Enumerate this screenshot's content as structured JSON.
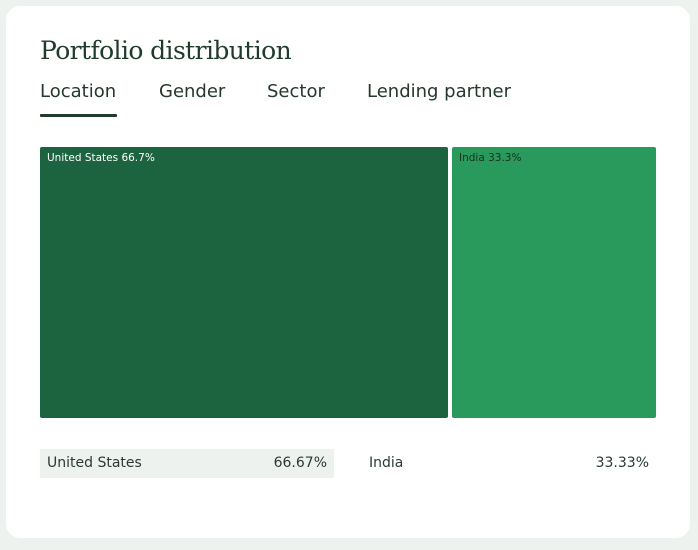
{
  "header": {
    "title": "Portfolio distribution"
  },
  "tabs": [
    {
      "label": "Location",
      "active": true
    },
    {
      "label": "Gender",
      "active": false
    },
    {
      "label": "Sector",
      "active": false
    },
    {
      "label": "Lending partner",
      "active": false
    }
  ],
  "treemap": {
    "tiles": [
      {
        "label": "United States 66.7%",
        "share": 0.667,
        "color": "#1c6340",
        "text_color": "#ffffff"
      },
      {
        "label": "India 33.3%",
        "share": 0.333,
        "color": "#29995c",
        "text_color": "#17301f"
      }
    ]
  },
  "legend": [
    {
      "name": "United States",
      "percent": "66.67%",
      "highlighted": true
    },
    {
      "name": "India",
      "percent": "33.33%",
      "highlighted": false
    }
  ],
  "colors": {
    "background": "#eef2ef",
    "card": "#ffffff",
    "text_dark": "#1f3b2a",
    "highlight_row": "#edf2ee"
  }
}
